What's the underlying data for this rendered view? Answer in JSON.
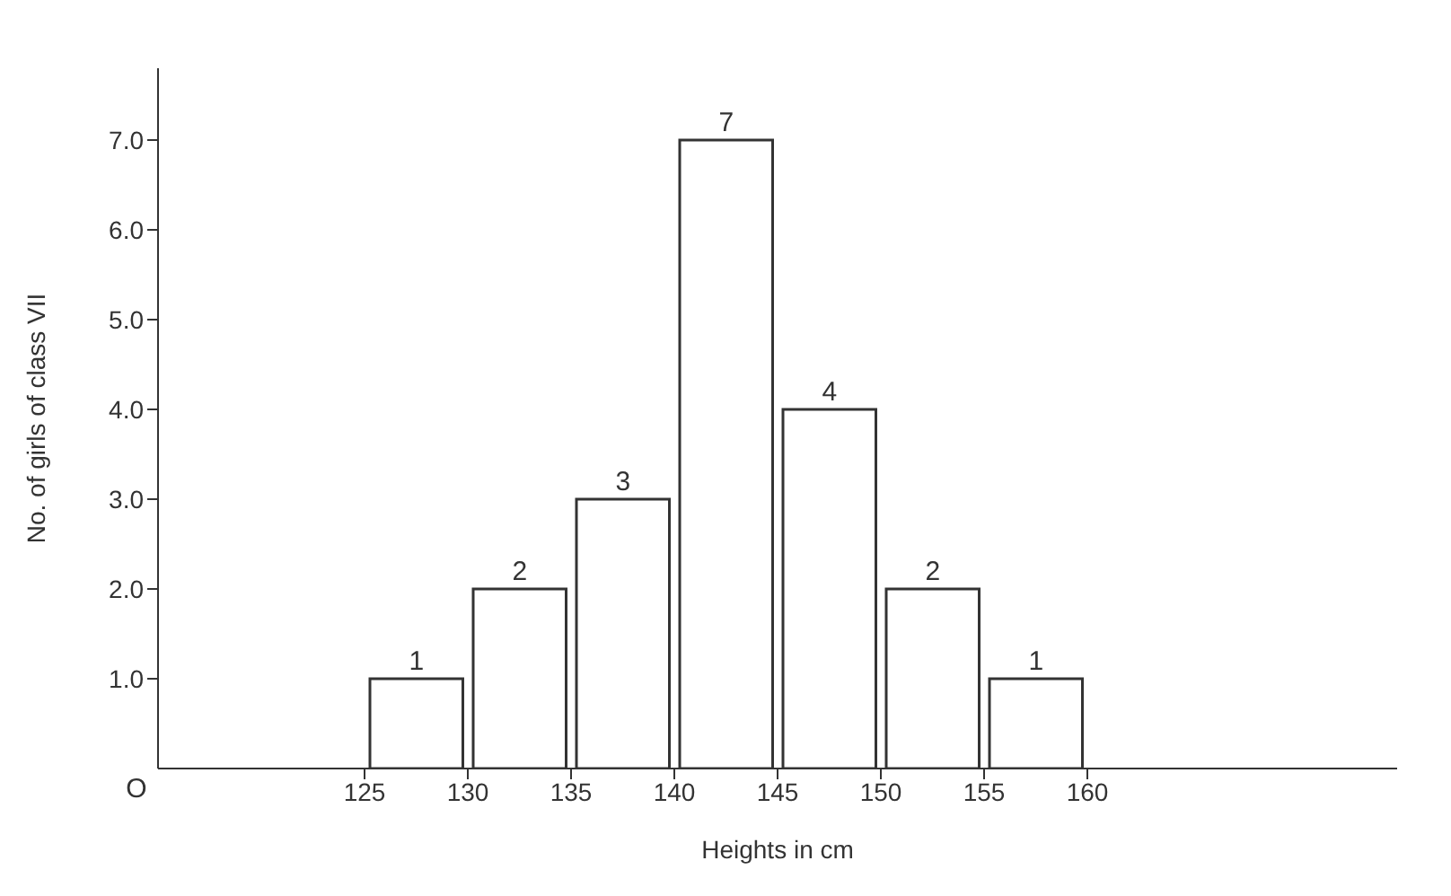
{
  "chart_data": {
    "type": "histogram",
    "xlabel": "Heights in cm",
    "ylabel": "No. of girls of class VII",
    "bins": [
      125,
      130,
      135,
      140,
      145,
      150,
      155,
      160
    ],
    "values": [
      1,
      2,
      3,
      7,
      4,
      2,
      1
    ],
    "color": "#ffffff",
    "data_labels": true,
    "xlim": [
      115,
      175
    ],
    "xticks": [
      125,
      130,
      135,
      140,
      145,
      150,
      155,
      160
    ],
    "ylim": [
      0,
      7.8
    ],
    "yticks": [
      {
        "value": 1,
        "label": "1.0"
      },
      {
        "value": 2,
        "label": "2.0"
      },
      {
        "value": 3,
        "label": "3.0"
      },
      {
        "value": 4,
        "label": "4.0"
      },
      {
        "value": 5,
        "label": "5.0"
      },
      {
        "value": 6,
        "label": "6.0"
      },
      {
        "value": 7,
        "label": "7.0"
      }
    ],
    "annotations": [
      "O"
    ],
    "grid": false
  }
}
